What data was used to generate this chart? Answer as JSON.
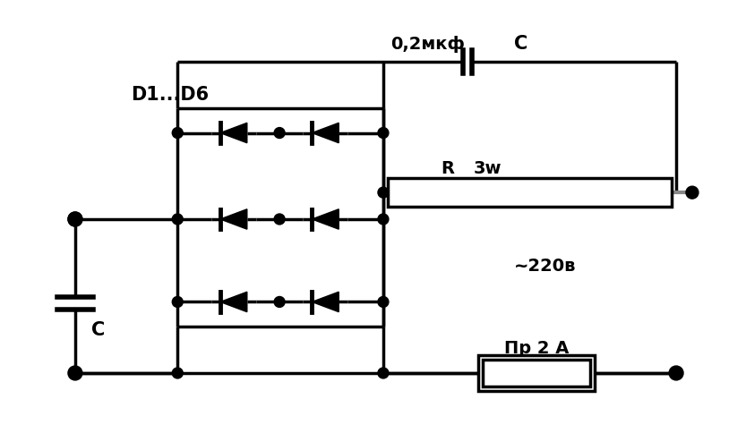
{
  "bg_color": "#ffffff",
  "line_color": "#000000",
  "gray_color": "#888888",
  "label_d1d6": "D1...D6",
  "label_cap_top": "0,2мкф",
  "label_c_top": "C",
  "label_r": "R",
  "label_r_val": "3w",
  "label_voltage": "~220в",
  "label_fuse": "Пр 2 А",
  "label_c_bot": "C",
  "figsize": [
    8.33,
    4.84
  ],
  "dpi": 100,
  "lw": 2.5
}
